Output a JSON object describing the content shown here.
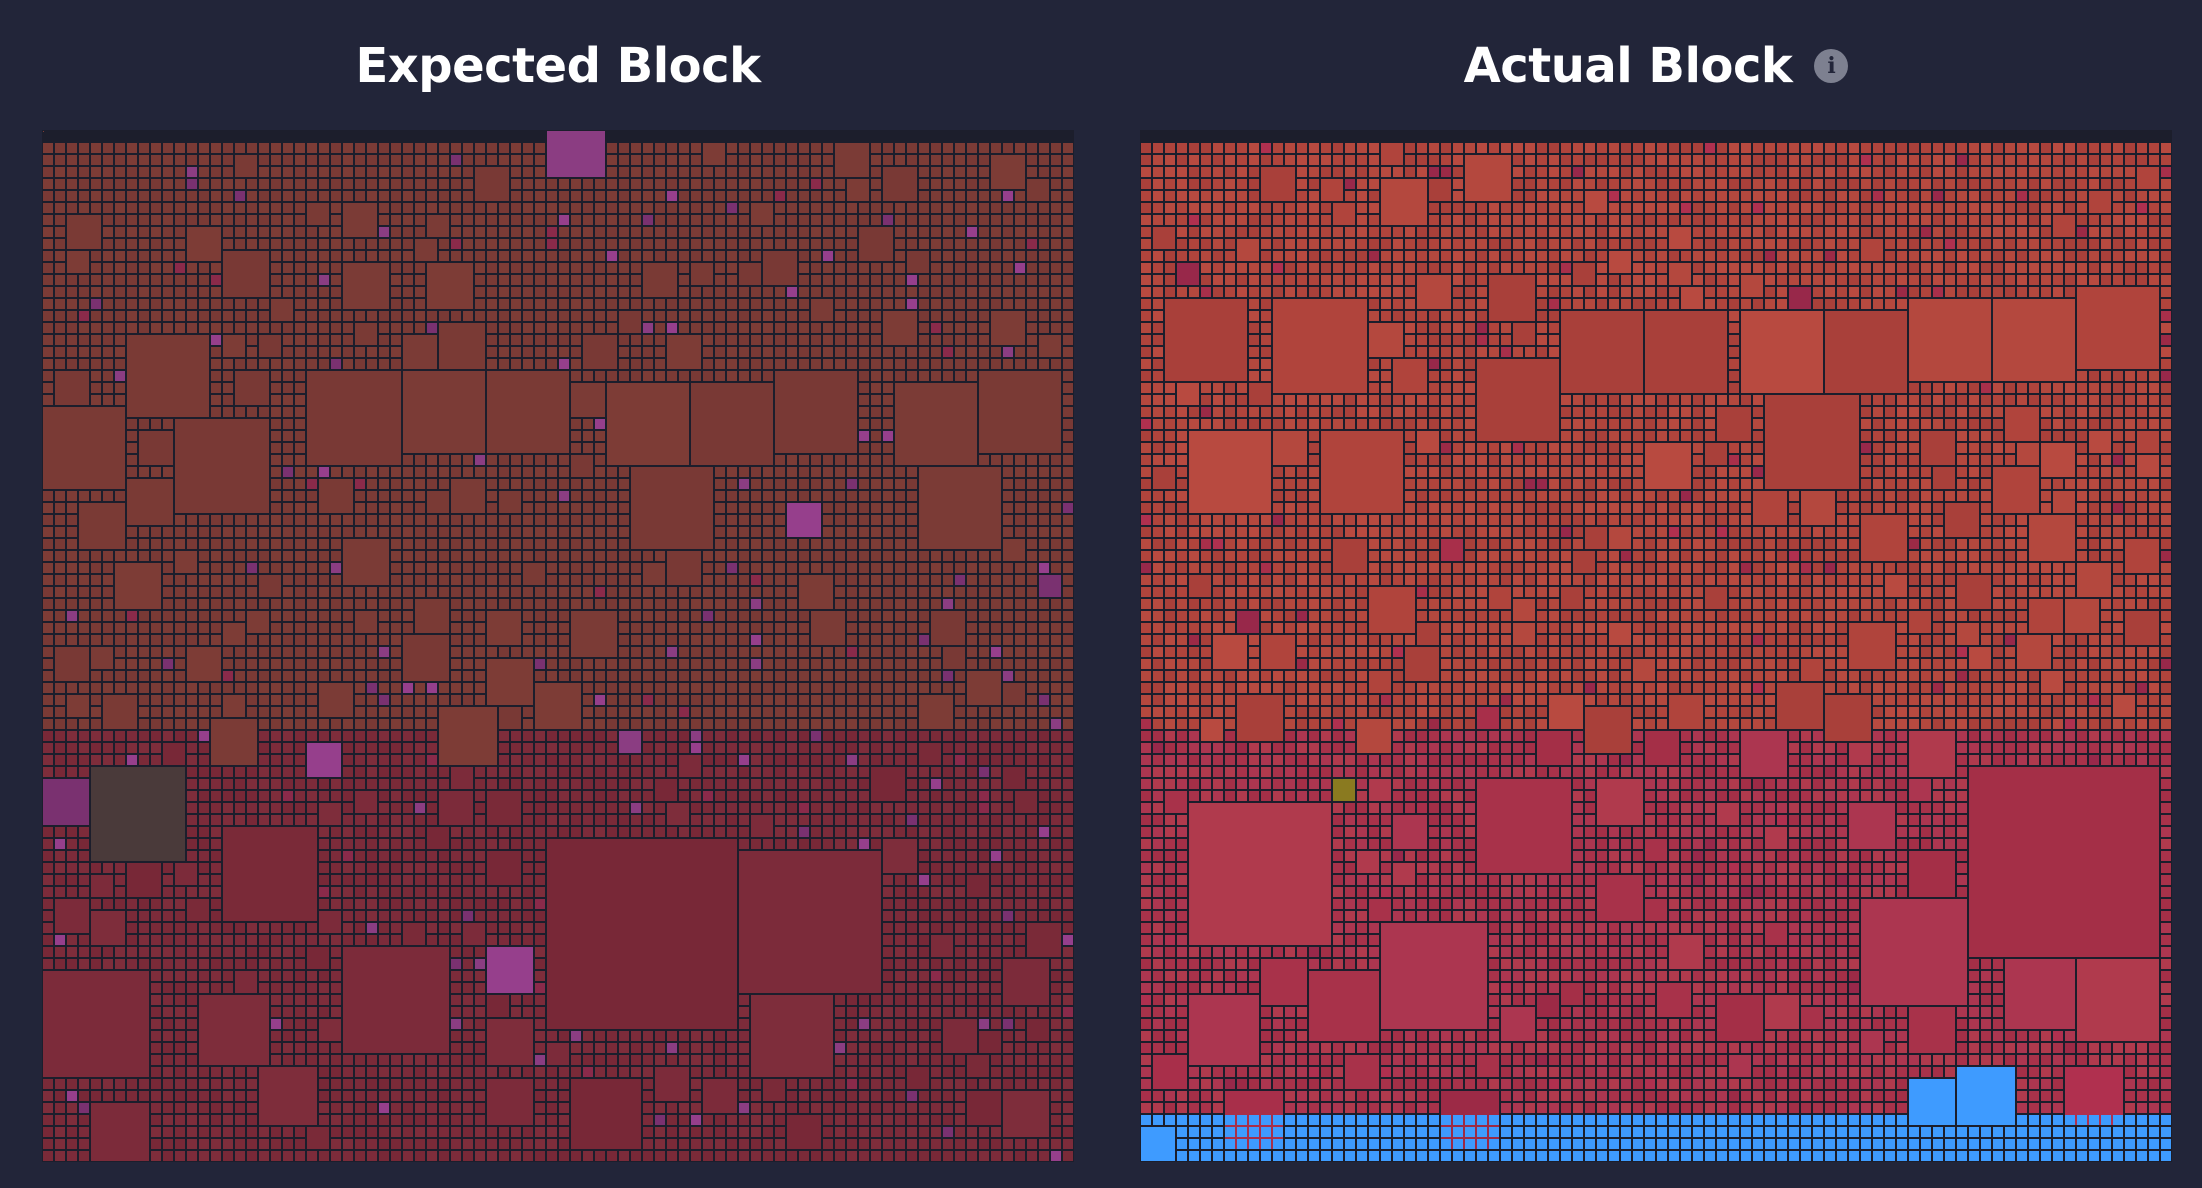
{
  "expected_block": {
    "title": "Expected Block",
    "theme": {
      "top_colors": [
        "#7a3a35",
        "#7d3c36",
        "#793935",
        "#7b3b36"
      ],
      "bottom_colors": [
        "#7a2a38",
        "#7c2b3a",
        "#782837",
        "#7e2d3b"
      ],
      "accent_colors": [
        "#8b3d82",
        "#7a3170",
        "#963f8c",
        "#8a2a4a"
      ],
      "dark_color": "#4a3a3a",
      "olive_color": "#7a6a20"
    }
  },
  "actual_block": {
    "title": "Actual Block",
    "info_icon": "info-icon",
    "info_glyph": "i",
    "theme": {
      "top_colors": [
        "#b0443c",
        "#b4483e",
        "#a9403a",
        "#b84a40"
      ],
      "bottom_colors": [
        "#a8324a",
        "#ac3650",
        "#a42f47",
        "#b03a4d"
      ],
      "accent_colors": [
        "#a82f4a",
        "#9c2a46",
        "#b0304f",
        "#98284a"
      ],
      "blue_color": "#3e9bff",
      "olive_color": "#8a7a20"
    }
  }
}
